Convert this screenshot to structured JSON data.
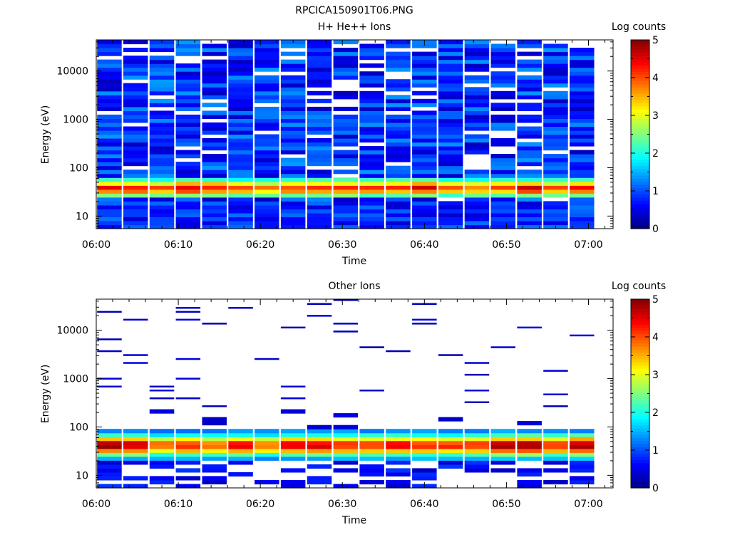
{
  "figure_title": "RPCICA150901T06.PNG",
  "chart_data": [
    {
      "type": "heatmap",
      "title": "H+ He++ Ions",
      "xlabel": "Time",
      "ylabel": "Energy (eV)",
      "colorbar_label": "Log counts",
      "colorbar_ticks": [
        "0",
        "1",
        "2",
        "3",
        "4",
        "5"
      ],
      "colorbar_range": [
        0,
        5
      ],
      "colormap": "jet",
      "yscale": "log",
      "ylim": [
        5.5,
        44000
      ],
      "x_tick_labels": [
        "06:00",
        "06:10",
        "06:20",
        "06:30",
        "06:40",
        "06:50",
        "07:00"
      ],
      "y_tick_labels": [
        "10",
        "100",
        "1000",
        "10000"
      ],
      "x_range_minutes": [
        0,
        63
      ],
      "time_bins": 19,
      "bin_width_minutes": 3.2,
      "dominant_feature": "Main ion population at ~20–60 eV reaching log counts ~3–4.5; broad log counts ~0.5–1.5 background up to ~40 keV with gaps"
    },
    {
      "type": "heatmap",
      "title": "Other Ions",
      "xlabel": "Time",
      "ylabel": "Energy (eV)",
      "colorbar_label": "Log counts",
      "colorbar_ticks": [
        "0",
        "1",
        "2",
        "3",
        "4",
        "5"
      ],
      "colorbar_range": [
        0,
        5
      ],
      "colormap": "jet",
      "yscale": "log",
      "ylim": [
        5.5,
        44000
      ],
      "x_tick_labels": [
        "06:00",
        "06:10",
        "06:20",
        "06:30",
        "06:40",
        "06:50",
        "07:00"
      ],
      "y_tick_labels": [
        "10",
        "100",
        "1000",
        "10000"
      ],
      "x_range_minutes": [
        0,
        63
      ],
      "time_bins": 19,
      "bin_width_minutes": 3.2,
      "dominant_feature": "Intense population at ~30–50 eV (log counts ~4–5), sparse low-count lines up to ~35 keV"
    }
  ]
}
